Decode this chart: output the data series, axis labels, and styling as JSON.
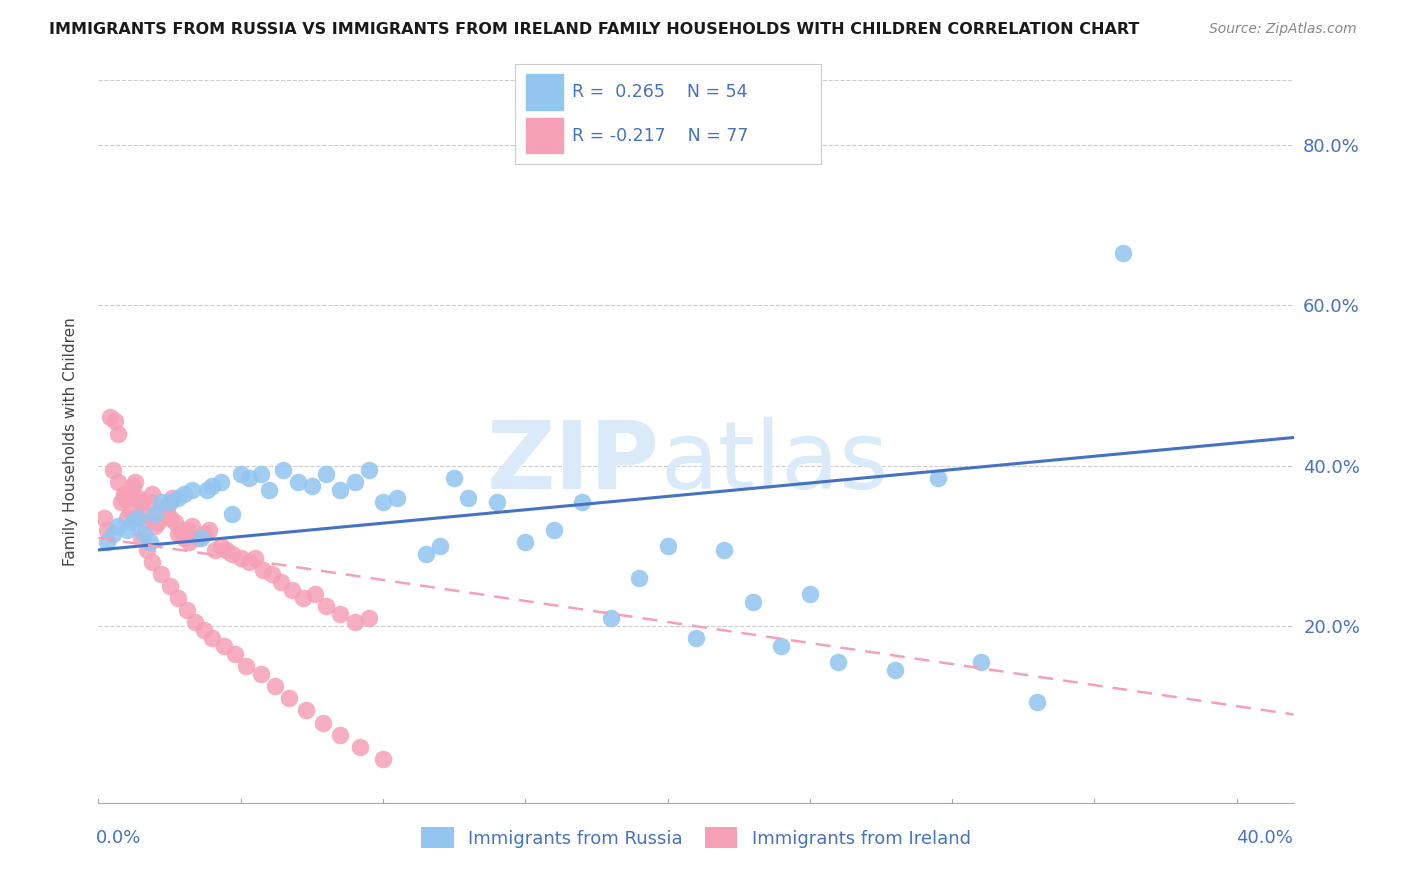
{
  "title": "IMMIGRANTS FROM RUSSIA VS IMMIGRANTS FROM IRELAND FAMILY HOUSEHOLDS WITH CHILDREN CORRELATION CHART",
  "source": "Source: ZipAtlas.com",
  "ylabel": "Family Households with Children",
  "russia_color": "#92C5F0",
  "ireland_color": "#F5A0B5",
  "russia_line_color": "#4472C4",
  "ireland_line_color": "#F5A0B5",
  "xlim": [
    0.0,
    0.42
  ],
  "ylim": [
    -0.02,
    0.88
  ],
  "ytick_values": [
    0.2,
    0.4,
    0.6,
    0.8
  ],
  "ytick_labels": [
    "20.0%",
    "40.0%",
    "60.0%",
    "80.0%"
  ],
  "russia_line_x": [
    0.0,
    0.42
  ],
  "russia_line_y": [
    0.295,
    0.435
  ],
  "ireland_line_x": [
    0.0,
    0.42
  ],
  "ireland_line_y": [
    0.31,
    0.09
  ],
  "russia_pts_x": [
    0.003,
    0.005,
    0.007,
    0.01,
    0.012,
    0.014,
    0.016,
    0.018,
    0.02,
    0.022,
    0.025,
    0.028,
    0.03,
    0.033,
    0.036,
    0.038,
    0.04,
    0.043,
    0.047,
    0.05,
    0.053,
    0.057,
    0.06,
    0.065,
    0.07,
    0.075,
    0.08,
    0.085,
    0.09,
    0.095,
    0.1,
    0.105,
    0.115,
    0.12,
    0.125,
    0.13,
    0.14,
    0.15,
    0.16,
    0.17,
    0.18,
    0.19,
    0.2,
    0.21,
    0.22,
    0.23,
    0.24,
    0.25,
    0.26,
    0.28,
    0.295,
    0.31,
    0.33,
    0.36
  ],
  "russia_pts_y": [
    0.305,
    0.315,
    0.325,
    0.32,
    0.33,
    0.335,
    0.315,
    0.305,
    0.34,
    0.355,
    0.355,
    0.36,
    0.365,
    0.37,
    0.31,
    0.37,
    0.375,
    0.38,
    0.34,
    0.39,
    0.385,
    0.39,
    0.37,
    0.395,
    0.38,
    0.375,
    0.39,
    0.37,
    0.38,
    0.395,
    0.355,
    0.36,
    0.29,
    0.3,
    0.385,
    0.36,
    0.355,
    0.305,
    0.32,
    0.355,
    0.21,
    0.26,
    0.3,
    0.185,
    0.295,
    0.23,
    0.175,
    0.24,
    0.155,
    0.145,
    0.385,
    0.155,
    0.105,
    0.665
  ],
  "ireland_pts_x": [
    0.002,
    0.004,
    0.006,
    0.007,
    0.008,
    0.009,
    0.01,
    0.011,
    0.012,
    0.013,
    0.014,
    0.015,
    0.016,
    0.017,
    0.018,
    0.019,
    0.02,
    0.021,
    0.022,
    0.023,
    0.024,
    0.025,
    0.026,
    0.027,
    0.028,
    0.029,
    0.03,
    0.031,
    0.032,
    0.033,
    0.035,
    0.037,
    0.039,
    0.041,
    0.043,
    0.045,
    0.047,
    0.05,
    0.053,
    0.055,
    0.058,
    0.061,
    0.064,
    0.068,
    0.072,
    0.076,
    0.08,
    0.085,
    0.09,
    0.095,
    0.003,
    0.005,
    0.007,
    0.009,
    0.011,
    0.013,
    0.015,
    0.017,
    0.019,
    0.022,
    0.025,
    0.028,
    0.031,
    0.034,
    0.037,
    0.04,
    0.044,
    0.048,
    0.052,
    0.057,
    0.062,
    0.067,
    0.073,
    0.079,
    0.085,
    0.092,
    0.1
  ],
  "ireland_pts_y": [
    0.335,
    0.46,
    0.455,
    0.44,
    0.355,
    0.36,
    0.335,
    0.345,
    0.375,
    0.38,
    0.36,
    0.355,
    0.34,
    0.33,
    0.355,
    0.365,
    0.325,
    0.33,
    0.345,
    0.35,
    0.345,
    0.335,
    0.36,
    0.33,
    0.315,
    0.32,
    0.31,
    0.32,
    0.305,
    0.325,
    0.31,
    0.315,
    0.32,
    0.295,
    0.3,
    0.295,
    0.29,
    0.285,
    0.28,
    0.285,
    0.27,
    0.265,
    0.255,
    0.245,
    0.235,
    0.24,
    0.225,
    0.215,
    0.205,
    0.21,
    0.32,
    0.395,
    0.38,
    0.365,
    0.36,
    0.335,
    0.31,
    0.295,
    0.28,
    0.265,
    0.25,
    0.235,
    0.22,
    0.205,
    0.195,
    0.185,
    0.175,
    0.165,
    0.15,
    0.14,
    0.125,
    0.11,
    0.095,
    0.08,
    0.065,
    0.05,
    0.035
  ]
}
